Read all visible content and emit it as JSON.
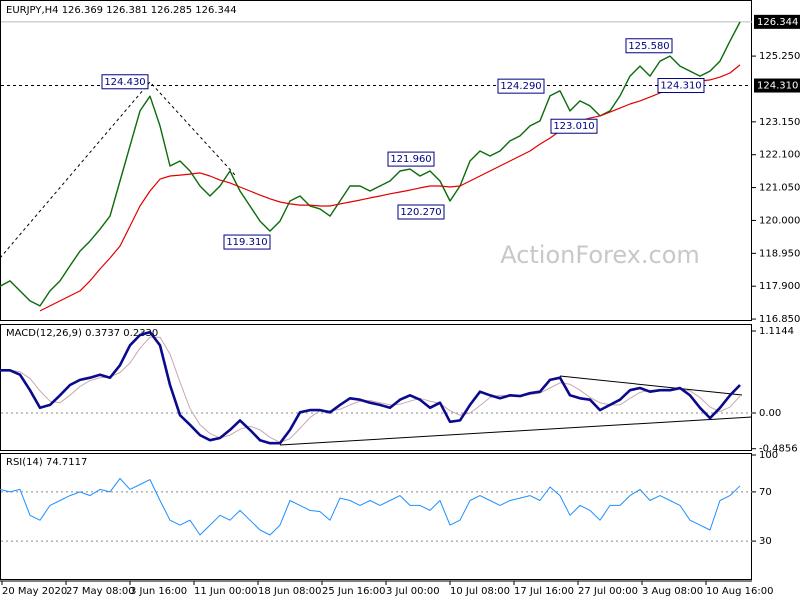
{
  "chart_data": [
    {
      "type": "line",
      "title": "EURJPY,H4  126.369 126.381 126.285 126.344",
      "watermark": "ActionForex.com",
      "x": [
        0,
        5,
        10,
        15,
        20,
        25,
        30,
        35,
        40,
        45,
        50,
        55,
        60,
        65,
        70,
        75,
        80,
        85,
        90,
        95,
        100,
        105,
        110,
        115,
        120,
        125,
        130,
        135,
        140,
        145,
        150,
        155,
        160,
        165,
        170,
        175,
        180,
        185,
        190,
        195,
        200,
        205,
        210,
        215,
        220,
        225,
        230,
        235,
        240,
        245,
        250,
        255,
        260,
        265,
        270,
        275,
        280,
        285,
        290,
        295,
        300,
        305,
        310,
        315,
        320,
        325,
        330,
        335,
        340,
        345,
        350,
        355,
        360,
        365,
        370
      ],
      "xlim": [
        0,
        375
      ],
      "ylim": [
        116.82,
        127.01
      ],
      "yticks": [
        {
          "value": 125.25,
          "label": "125.250"
        },
        {
          "value": 123.15,
          "label": "123.150"
        },
        {
          "value": 122.1,
          "label": "122.100"
        },
        {
          "value": 121.05,
          "label": "121.050"
        },
        {
          "value": 120,
          "label": "120.000"
        },
        {
          "value": 118.95,
          "label": "118.950"
        },
        {
          "value": 117.9,
          "label": "117.900"
        },
        {
          "value": 116.85,
          "label": "116.850"
        }
      ],
      "last_price": 126.344,
      "hline": {
        "value": 124.31,
        "label": "124.310"
      },
      "annotations": [
        {
          "x": 62.5,
          "value": 124.43,
          "label": "124.430"
        },
        {
          "x": 123.5,
          "value": 119.31,
          "label": "119.310"
        },
        {
          "x": 205.5,
          "value": 121.96,
          "label": "121.960"
        },
        {
          "x": 210.5,
          "value": 120.27,
          "label": "120.270"
        },
        {
          "x": 260.5,
          "value": 124.29,
          "label": "124.290"
        },
        {
          "x": 287,
          "value": 123.01,
          "label": "123.010"
        },
        {
          "x": 324.5,
          "value": 125.58,
          "label": "125.580"
        },
        {
          "x": 340.5,
          "value": 124.31,
          "label": "124.310"
        }
      ],
      "series": [
        {
          "color": "#0b6b0b",
          "width": 1.4,
          "values": [
            117.9,
            118.07,
            117.75,
            117.43,
            117.27,
            117.75,
            118.07,
            118.55,
            119.02,
            119.34,
            119.72,
            120.14,
            121.26,
            122.38,
            123.5,
            123.97,
            123.02,
            121.74,
            121.9,
            121.58,
            121.1,
            120.78,
            121.1,
            121.58,
            120.94,
            120.46,
            119.98,
            119.66,
            119.98,
            120.62,
            120.78,
            120.46,
            120.37,
            120.14,
            120.62,
            121.1,
            121.1,
            120.94,
            121.1,
            121.26,
            121.58,
            121.64,
            121.42,
            121.58,
            121.26,
            120.62,
            121.1,
            121.9,
            122.22,
            122.06,
            122.22,
            122.54,
            122.7,
            123.02,
            123.18,
            123.98,
            124.14,
            123.5,
            123.82,
            123.66,
            123.34,
            123.5,
            123.98,
            124.61,
            124.93,
            124.61,
            125.09,
            125.25,
            124.93,
            124.77,
            124.61,
            124.77,
            125.09,
            125.73,
            126.34
          ]
        },
        {
          "color": "#e00000",
          "width": 1.2,
          "values": [
            null,
            null,
            null,
            null,
            117.11,
            117.27,
            117.43,
            117.59,
            117.75,
            118.07,
            118.45,
            118.8,
            119.18,
            119.82,
            120.46,
            120.94,
            121.32,
            121.42,
            121.45,
            121.48,
            121.52,
            121.42,
            121.29,
            121.2,
            121.07,
            120.94,
            120.81,
            120.69,
            120.59,
            120.53,
            120.49,
            120.49,
            120.46,
            120.46,
            120.53,
            120.59,
            120.65,
            120.72,
            120.78,
            120.85,
            120.91,
            120.97,
            121.04,
            121.1,
            121.1,
            121.07,
            121.1,
            121.26,
            121.42,
            121.58,
            121.74,
            121.9,
            122.06,
            122.22,
            122.44,
            122.63,
            122.86,
            123.02,
            123.18,
            123.27,
            123.34,
            123.46,
            123.59,
            123.72,
            123.82,
            123.94,
            124.07,
            124.2,
            124.29,
            124.39,
            124.45,
            124.49,
            124.58,
            124.71,
            124.97
          ]
        }
      ]
    },
    {
      "type": "line",
      "title": "MACD(12,26,9) 0.3737 0.2330",
      "x": [
        0,
        5,
        10,
        15,
        20,
        25,
        30,
        35,
        40,
        45,
        50,
        55,
        60,
        65,
        70,
        75,
        80,
        85,
        90,
        95,
        100,
        105,
        110,
        115,
        120,
        125,
        130,
        135,
        140,
        145,
        150,
        155,
        160,
        165,
        170,
        175,
        180,
        185,
        190,
        195,
        200,
        205,
        210,
        215,
        220,
        225,
        230,
        235,
        240,
        245,
        250,
        255,
        260,
        265,
        270,
        275,
        280,
        285,
        290,
        295,
        300,
        305,
        310,
        315,
        320,
        325,
        330,
        335,
        340,
        345,
        350,
        355,
        360,
        365,
        370
      ],
      "xlim": [
        0,
        375
      ],
      "ylim": [
        -0.503,
        1.196
      ],
      "yticks": [
        1.1144,
        {
          "value": 0,
          "label": "0.00"
        },
        -0.4856
      ],
      "levels": [
        0
      ],
      "series": [
        {
          "color": "#c8a8b0",
          "width": 1,
          "values": [
            0.58,
            0.58,
            0.56,
            0.47,
            0.3,
            0.16,
            0.14,
            0.24,
            0.36,
            0.44,
            0.48,
            0.49,
            0.55,
            0.68,
            0.88,
            1.03,
            1.03,
            0.8,
            0.42,
            0.06,
            -0.16,
            -0.28,
            -0.34,
            -0.3,
            -0.22,
            -0.18,
            -0.23,
            -0.33,
            -0.4,
            -0.35,
            -0.21,
            -0.06,
            0.03,
            0.03,
            0.05,
            0.11,
            0.16,
            0.17,
            0.14,
            0.11,
            0.12,
            0.16,
            0.2,
            0.16,
            0.13,
            0.03,
            -0.03,
            0.0,
            0.1,
            0.21,
            0.24,
            0.23,
            0.23,
            0.25,
            0.27,
            0.34,
            0.41,
            0.39,
            0.31,
            0.21,
            0.14,
            0.11,
            0.11,
            0.2,
            0.28,
            0.31,
            0.31,
            0.3,
            0.32,
            0.3,
            0.21,
            0.08,
            0.02,
            0.08,
            0.23
          ]
        },
        {
          "color": "#0a0a8c",
          "width": 2.6,
          "values": [
            0.58,
            0.58,
            0.52,
            0.31,
            0.07,
            0.11,
            0.24,
            0.38,
            0.45,
            0.48,
            0.52,
            0.48,
            0.65,
            0.92,
            1.06,
            1.1,
            0.92,
            0.38,
            -0.03,
            -0.16,
            -0.3,
            -0.37,
            -0.34,
            -0.23,
            -0.1,
            -0.23,
            -0.37,
            -0.41,
            -0.41,
            -0.23,
            0.01,
            0.04,
            0.04,
            0.01,
            0.11,
            0.2,
            0.18,
            0.14,
            0.11,
            0.07,
            0.18,
            0.24,
            0.18,
            0.07,
            0.14,
            -0.12,
            -0.1,
            0.11,
            0.29,
            0.24,
            0.2,
            0.24,
            0.23,
            0.27,
            0.29,
            0.45,
            0.48,
            0.24,
            0.2,
            0.18,
            0.04,
            0.11,
            0.18,
            0.31,
            0.34,
            0.29,
            0.31,
            0.31,
            0.34,
            0.24,
            0.07,
            -0.07,
            0.07,
            0.24,
            0.38
          ]
        }
      ]
    },
    {
      "type": "line",
      "title": "RSI(14) 74.7117",
      "x": [
        0,
        5,
        10,
        15,
        20,
        25,
        30,
        35,
        40,
        45,
        50,
        55,
        60,
        65,
        70,
        75,
        80,
        85,
        90,
        95,
        100,
        105,
        110,
        115,
        120,
        125,
        130,
        135,
        140,
        145,
        150,
        155,
        160,
        165,
        170,
        175,
        180,
        185,
        190,
        195,
        200,
        205,
        210,
        215,
        220,
        225,
        230,
        235,
        240,
        245,
        250,
        255,
        260,
        265,
        270,
        275,
        280,
        285,
        290,
        295,
        300,
        305,
        310,
        315,
        320,
        325,
        330,
        335,
        340,
        345,
        350,
        355,
        360,
        365,
        370
      ],
      "xlim": [
        0,
        375
      ],
      "ylim": [
        0,
        100
      ],
      "yticks": [
        100,
        70,
        30
      ],
      "levels": [
        70,
        30
      ],
      "xticks": [
        {
          "value": 0,
          "label": "20 May 2020"
        },
        {
          "value": 32,
          "label": "27 May 08:00"
        },
        {
          "value": 64,
          "label": "3 Jun 16:00"
        },
        {
          "value": 96,
          "label": "11 Jun 00:00"
        },
        {
          "value": 128,
          "label": "18 Jun 08:00"
        },
        {
          "value": 160,
          "label": "25 Jun 16:00"
        },
        {
          "value": 192,
          "label": "3 Jul 00:00"
        },
        {
          "value": 224,
          "label": "10 Jul 08:00"
        },
        {
          "value": 256,
          "label": "17 Jul 16:00"
        },
        {
          "value": 288,
          "label": "27 Jul 00:00"
        },
        {
          "value": 320,
          "label": "3 Aug 08:00"
        },
        {
          "value": 352,
          "label": "10 Aug 16:00"
        }
      ],
      "series": [
        {
          "color": "#1e90ff",
          "width": 1,
          "values": [
            72,
            70,
            72,
            51,
            47,
            59,
            63,
            67,
            70,
            67,
            72,
            70,
            81,
            72,
            76,
            80,
            63,
            47,
            43,
            47,
            35,
            43,
            51,
            47,
            55,
            47,
            39,
            35,
            43,
            63,
            59,
            55,
            54,
            47,
            65,
            63,
            59,
            63,
            59,
            63,
            67,
            59,
            59,
            55,
            63,
            43,
            47,
            63,
            67,
            63,
            59,
            63,
            65,
            67,
            63,
            74,
            67,
            51,
            59,
            55,
            47,
            59,
            59,
            67,
            72,
            63,
            67,
            63,
            59,
            47,
            43,
            39,
            63,
            67,
            75
          ]
        }
      ]
    }
  ]
}
